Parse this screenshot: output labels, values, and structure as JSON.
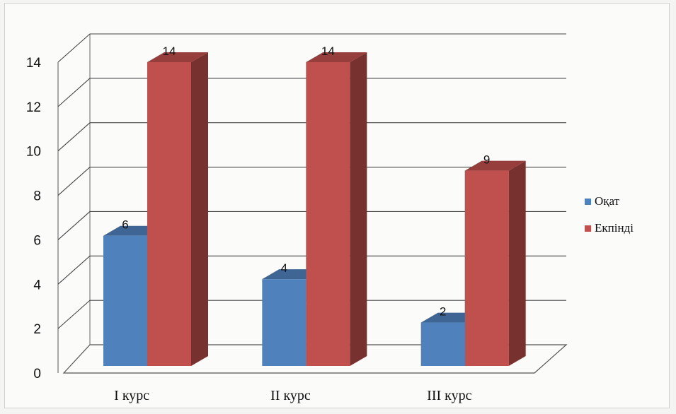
{
  "chart_data": {
    "type": "bar",
    "categories": [
      "I курс",
      "II курс",
      "III курс"
    ],
    "series": [
      {
        "name": "Оқат",
        "values": [
          6,
          4,
          2
        ],
        "color": "#4f81bd"
      },
      {
        "name": "Екпіндi",
        "values": [
          14,
          14,
          9
        ],
        "color": "#c0504d"
      }
    ],
    "yticks": [
      0,
      2,
      4,
      6,
      8,
      10,
      12,
      14
    ],
    "ylim": [
      0,
      14
    ],
    "grid": true,
    "three_d": true,
    "legend_position": "right"
  }
}
